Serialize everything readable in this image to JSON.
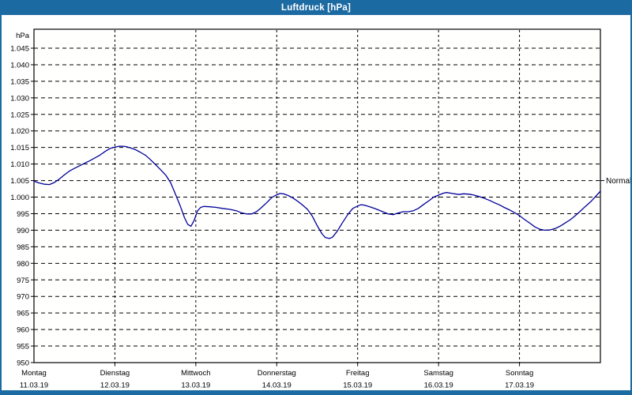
{
  "window": {
    "title": "Luftdruck [hPa]",
    "titlebar_color": "#1c6aa2",
    "border_color": "#1c6aa2"
  },
  "chart_data": {
    "type": "line",
    "title": "Luftdruck [hPa]",
    "unit_label": "hPa",
    "ylim": [
      950,
      1050.5
    ],
    "xlim_days": [
      0,
      7
    ],
    "grid": "dashed",
    "legend_position": "none",
    "line_color": "#000099",
    "y_tick_values": [
      1045,
      1040,
      1035,
      1030,
      1025,
      1020,
      1015,
      1010,
      1005,
      1000,
      995,
      990,
      985,
      980,
      975,
      970,
      965,
      960,
      955,
      950
    ],
    "y_tick_labels": [
      "1.045",
      "1.040",
      "1.035",
      "1.030",
      "1.025",
      "1.020",
      "1.015",
      "1.010",
      "1.005",
      "1.000",
      "995",
      "990",
      "985",
      "980",
      "975",
      "970",
      "965",
      "960",
      "955",
      "950"
    ],
    "x_categories": [
      {
        "day": "Montag",
        "date": "11.03.19"
      },
      {
        "day": "Dienstag",
        "date": "12.03.19"
      },
      {
        "day": "Mittwoch",
        "date": "13.03.19"
      },
      {
        "day": "Donnerstag",
        "date": "14.03.19"
      },
      {
        "day": "Freitag",
        "date": "15.03.19"
      },
      {
        "day": "Samstag",
        "date": "16.03.19"
      },
      {
        "day": "Sonntag",
        "date": "17.03.19"
      }
    ],
    "normal_annotation": {
      "label": "Normal",
      "value": 1005
    },
    "series": [
      {
        "name": "Luftdruck",
        "x_days": [
          0,
          0.06,
          0.13,
          0.19,
          0.25,
          0.31,
          0.38,
          0.44,
          0.5,
          0.56,
          0.63,
          0.69,
          0.75,
          0.81,
          0.88,
          0.94,
          1,
          1.06,
          1.13,
          1.19,
          1.25,
          1.31,
          1.38,
          1.44,
          1.5,
          1.56,
          1.63,
          1.69,
          1.75,
          1.81,
          1.86,
          1.9,
          1.94,
          1.98,
          2.02,
          2.06,
          2.1,
          2.17,
          2.25,
          2.33,
          2.42,
          2.5,
          2.56,
          2.63,
          2.69,
          2.75,
          2.81,
          2.88,
          2.94,
          3,
          3.04,
          3.08,
          3.13,
          3.19,
          3.25,
          3.31,
          3.38,
          3.44,
          3.5,
          3.56,
          3.6,
          3.65,
          3.69,
          3.75,
          3.81,
          3.88,
          3.94,
          4,
          4.04,
          4.08,
          4.15,
          4.23,
          4.31,
          4.38,
          4.44,
          4.5,
          4.56,
          4.63,
          4.69,
          4.75,
          4.81,
          4.88,
          4.94,
          5,
          5.06,
          5.1,
          5.17,
          5.25,
          5.31,
          5.38,
          5.44,
          5.5,
          5.56,
          5.63,
          5.69,
          5.75,
          5.81,
          5.88,
          5.94,
          6,
          6.06,
          6.13,
          6.19,
          6.25,
          6.31,
          6.38,
          6.44,
          6.5,
          6.56,
          6.63,
          6.69,
          6.75,
          6.81,
          6.88,
          6.94,
          7
        ],
        "y_hpa": [
          1004.8,
          1004.3,
          1003.9,
          1003.8,
          1004.4,
          1005.4,
          1006.8,
          1007.9,
          1008.7,
          1009.4,
          1010.3,
          1011,
          1011.8,
          1012.6,
          1013.8,
          1014.7,
          1015.1,
          1015.4,
          1015.3,
          1014.9,
          1014.4,
          1013.6,
          1012.6,
          1011.3,
          1009.9,
          1008.4,
          1006.6,
          1004.3,
          1000.8,
          997.2,
          993.8,
          991.8,
          991.2,
          993,
          995.8,
          996.9,
          997.2,
          997.1,
          996.9,
          996.6,
          996.3,
          995.9,
          995.3,
          994.9,
          994.9,
          995.6,
          996.8,
          998.4,
          999.9,
          1000.7,
          1001.1,
          1001,
          1000.6,
          999.9,
          998.9,
          997.8,
          996.3,
          994.2,
          991.4,
          988.9,
          987.8,
          987.5,
          987.9,
          989.8,
          992.2,
          994.8,
          996.6,
          997.3,
          997.7,
          997.6,
          997.1,
          996.4,
          995.6,
          994.9,
          994.7,
          995.2,
          995.6,
          995.6,
          995.9,
          996.6,
          997.7,
          998.9,
          1000,
          1000.6,
          1001.2,
          1001.4,
          1001.1,
          1000.8,
          1001,
          1000.9,
          1000.6,
          1000.2,
          999.7,
          999,
          998.3,
          997.7,
          996.9,
          996.1,
          995.3,
          994.4,
          993.3,
          992.1,
          991,
          990.3,
          990,
          990.1,
          990.5,
          991.2,
          992.1,
          993.2,
          994.4,
          995.7,
          997.1,
          998.6,
          1000.2,
          1001.8
        ]
      }
    ]
  }
}
